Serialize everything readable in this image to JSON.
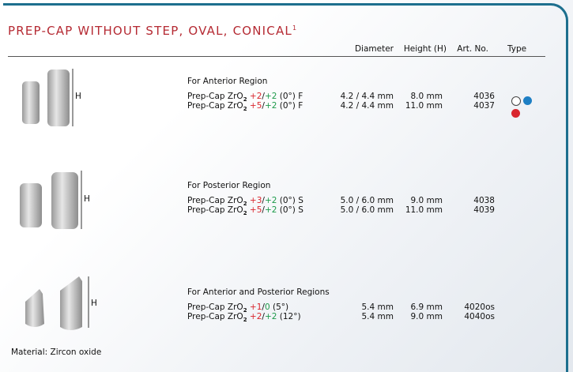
{
  "header": {
    "title": "PREP-CAP WITHOUT STEP, OVAL, CONICAL",
    "footnote_mark": "1"
  },
  "columns": [
    "Diameter",
    "Height (H)",
    "Art. No.",
    "Type"
  ],
  "sections": [
    {
      "heading": "For Anterior Region",
      "h_label": "H",
      "rows": [
        {
          "product": "Prep-Cap ZrO",
          "sub": "2",
          "a": "+2",
          "sep": "/",
          "b": "+2",
          "suffix": "(0°) F",
          "diameter": "4.2 / 4.4 mm",
          "height": "8.0 mm",
          "art": "4036"
        },
        {
          "product": "Prep-Cap ZrO",
          "sub": "2",
          "a": "+5",
          "sep": "/",
          "b": "+2",
          "suffix": "(0°) F",
          "diameter": "4.2 / 4.4 mm",
          "height": "11.0 mm",
          "art": "4037"
        }
      ]
    },
    {
      "heading": "For Posterior Region",
      "h_label": "H",
      "rows": [
        {
          "product": "Prep-Cap ZrO",
          "sub": "2",
          "a": "+3",
          "sep": "/",
          "b": "+2",
          "suffix": "(0°) S",
          "diameter": "5.0 / 6.0 mm",
          "height": "9.0 mm",
          "art": "4038"
        },
        {
          "product": "Prep-Cap ZrO",
          "sub": "2",
          "a": "+5",
          "sep": "/",
          "b": "+2",
          "suffix": "(0°) S",
          "diameter": "5.0 / 6.0 mm",
          "height": "11.0 mm",
          "art": "4039"
        }
      ]
    },
    {
      "heading": "For Anterior and Posterior Regions",
      "h_label": "H",
      "rows": [
        {
          "product": "Prep-Cap ZrO",
          "sub": "2",
          "a": "+1",
          "sep": "/",
          "b": "0",
          "suffix": "(5°)",
          "diameter": "5.4 mm",
          "height": "6.9 mm",
          "art": "4020os"
        },
        {
          "product": "Prep-Cap ZrO",
          "sub": "2",
          "a": "+2",
          "sep": "/",
          "b": "+2",
          "suffix": "(12°)",
          "diameter": "5.4 mm",
          "height": "9.0 mm",
          "art": "4040os"
        }
      ]
    }
  ],
  "footer": {
    "material": "Material: Zircon oxide"
  }
}
